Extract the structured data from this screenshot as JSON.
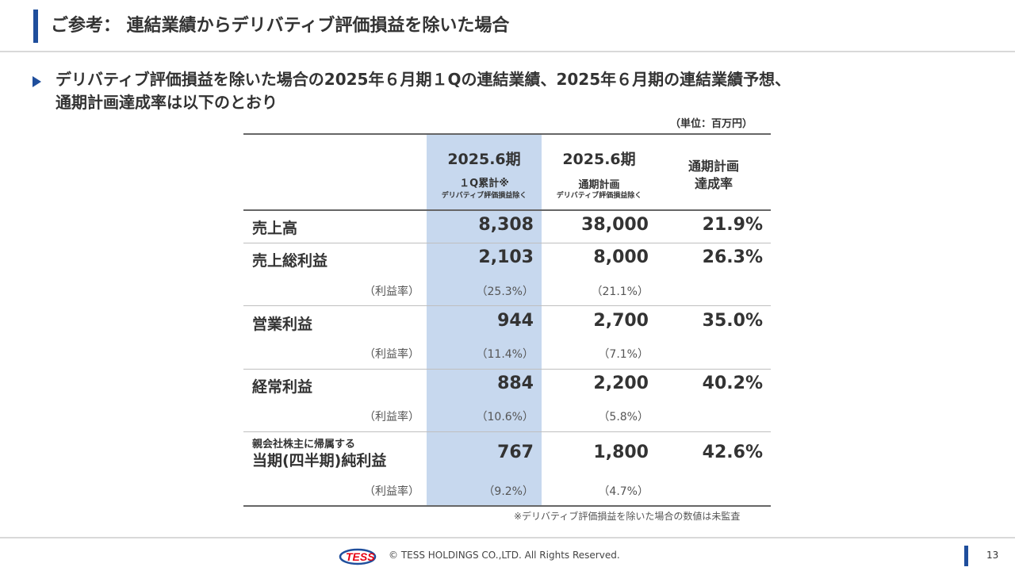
{
  "header": {
    "title": "ご参考： 連結業績からデリバティブ評価損益を除いた場合"
  },
  "bullet": {
    "line1": "デリバティブ評価損益を除いた場合の2025年６月期１Qの連結業績、2025年６月期の連結業績予想、",
    "line2": "通期計画達成率は以下のとおり"
  },
  "unit": "（単位：百万円）",
  "table": {
    "columns": [
      {
        "main": "2025.6期",
        "sub": "１Q累計※",
        "tiny": "デリバティブ評価損益除く"
      },
      {
        "main": "2025.6期",
        "sub": "通期計画",
        "tiny": "デリバティブ評価損益除く"
      },
      {
        "main": "通期計画",
        "sub": "達成率"
      }
    ],
    "rows": [
      {
        "label": "売上高",
        "q1": "8,308",
        "plan": "38,000",
        "rate": "21.9%"
      },
      {
        "label": "売上総利益",
        "q1": "2,103",
        "plan": "8,000",
        "rate": "26.3%",
        "margin_label": "（利益率）",
        "q1_margin": "（25.3%）",
        "plan_margin": "（21.1%）"
      },
      {
        "label": "営業利益",
        "q1": "944",
        "plan": "2,700",
        "rate": "35.0%",
        "margin_label": "（利益率）",
        "q1_margin": "（11.4%）",
        "plan_margin": "（7.1%）"
      },
      {
        "label": "経常利益",
        "q1": "884",
        "plan": "2,200",
        "rate": "40.2%",
        "margin_label": "（利益率）",
        "q1_margin": "（10.6%）",
        "plan_margin": "（5.8%）"
      },
      {
        "label_small": "親会社株主に帰属する",
        "label": "当期(四半期)純利益",
        "q1": "767",
        "plan": "1,800",
        "rate": "42.6%",
        "margin_label": "（利益率）",
        "q1_margin": "（9.2%）",
        "plan_margin": "（4.7%）"
      }
    ]
  },
  "note": "※デリバティブ評価損益を除いた場合の数値は未監査",
  "footer": {
    "logo_text": "TESS",
    "copyright": "© TESS HOLDINGS CO.,LTD. All Rights Reserved.",
    "page": "13"
  },
  "colors": {
    "accent": "#1f4e9c",
    "highlight_column": "#c7d8ee",
    "logo_red": "#e60012"
  }
}
